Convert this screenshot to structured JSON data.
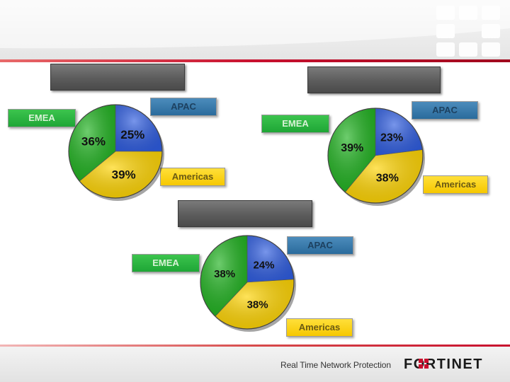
{
  "footer": {
    "tagline": "Real Time Network Protection",
    "brand": "FORTINET"
  },
  "labels": {
    "emea": "EMEA",
    "apac": "APAC",
    "americas": "Americas"
  },
  "colors": {
    "apac": "#2f5de0",
    "americas": "#ffd400",
    "emea": "#1fb21f",
    "accent": "#c8102e"
  },
  "chart_data": [
    {
      "type": "pie",
      "title": "",
      "categories": [
        "APAC",
        "Americas",
        "EMEA"
      ],
      "values": [
        25,
        39,
        36
      ],
      "value_labels": [
        "25%",
        "39%",
        "36%"
      ]
    },
    {
      "type": "pie",
      "title": "",
      "categories": [
        "APAC",
        "Americas",
        "EMEA"
      ],
      "values": [
        23,
        38,
        39
      ],
      "value_labels": [
        "23%",
        "38%",
        "39%"
      ]
    },
    {
      "type": "pie",
      "title": "",
      "categories": [
        "APAC",
        "Americas",
        "EMEA"
      ],
      "values": [
        24,
        38,
        38
      ],
      "value_labels": [
        "24%",
        "38%",
        "38%"
      ]
    }
  ]
}
